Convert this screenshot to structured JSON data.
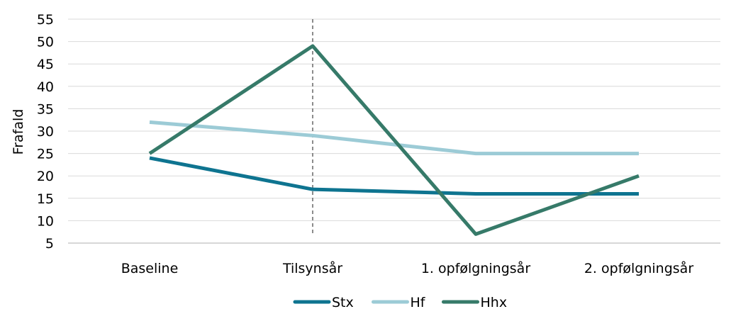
{
  "chart_data": {
    "type": "line",
    "title": "",
    "xlabel": "",
    "ylabel": "Frafald",
    "categories": [
      "Baseline",
      "Tilsynsår",
      "1. opfølgningsår",
      "2. opfølgningsår"
    ],
    "ylim": [
      5,
      55
    ],
    "yticks": [
      5,
      10,
      15,
      20,
      25,
      30,
      35,
      40,
      45,
      50,
      55
    ],
    "grid": true,
    "legend_position": "bottom",
    "reference_line": {
      "at_category": "Tilsynsår",
      "style": "dashed",
      "color": "#666666"
    },
    "series": [
      {
        "name": "Stx",
        "color": "#0e7490",
        "values": [
          24,
          17,
          16,
          16
        ]
      },
      {
        "name": "Hf",
        "color": "#9ccbd6",
        "values": [
          32,
          29,
          25,
          25
        ]
      },
      {
        "name": "Hhx",
        "color": "#367a69",
        "values": [
          25,
          49,
          7,
          20
        ]
      }
    ]
  }
}
